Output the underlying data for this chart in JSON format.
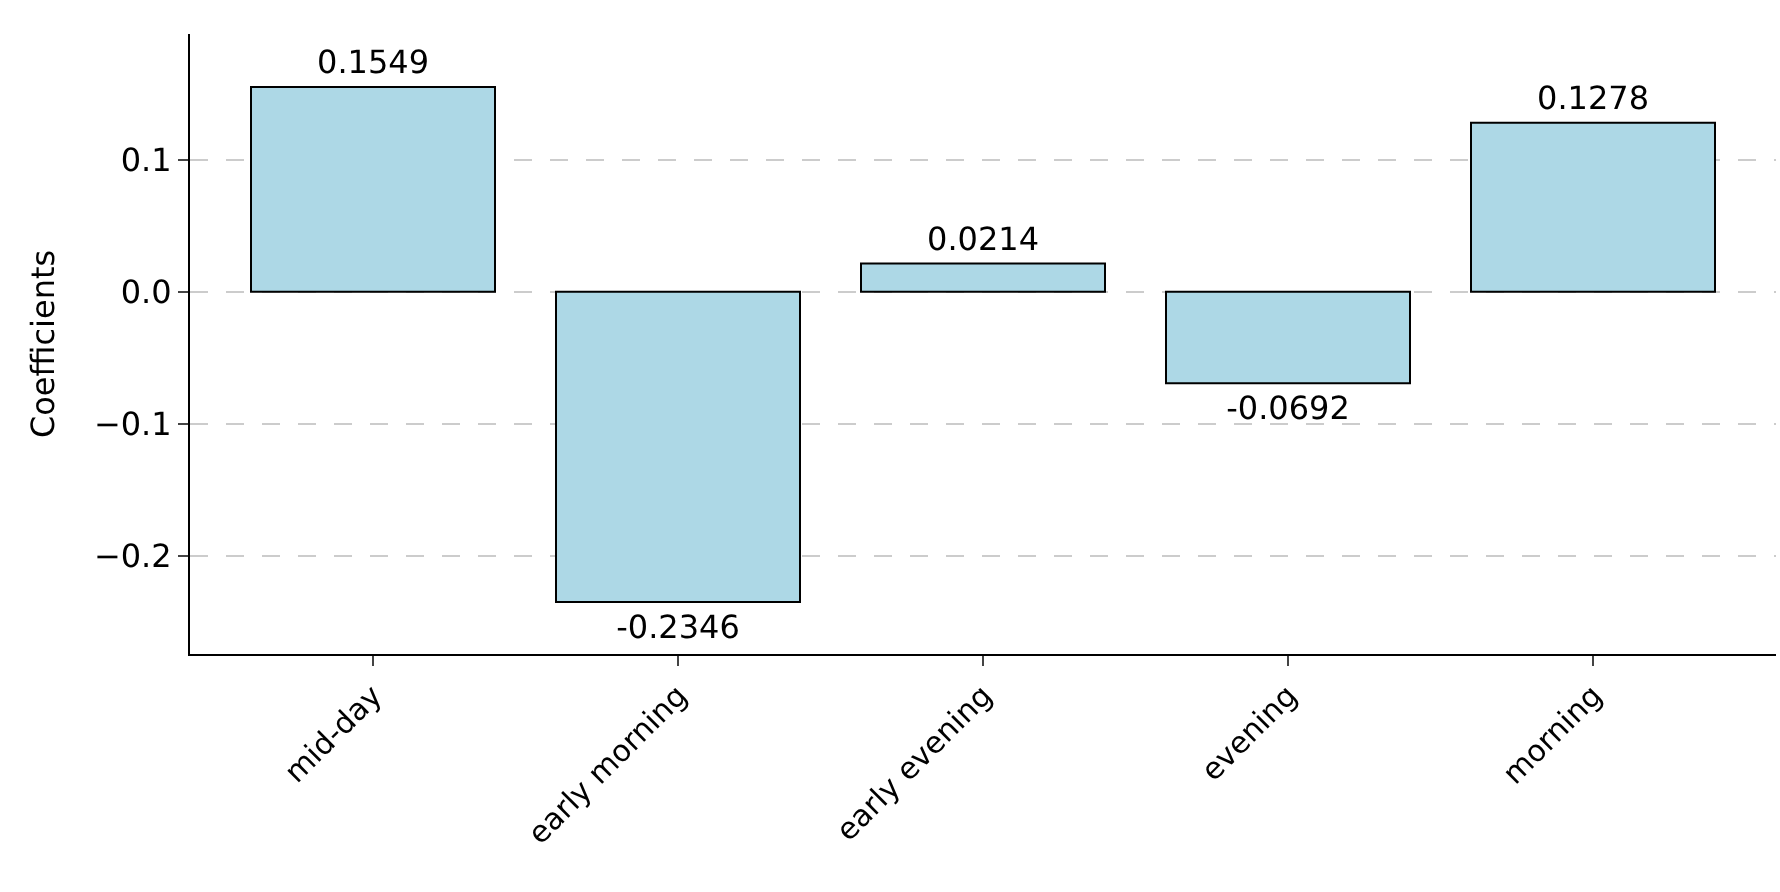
{
  "chart_data": {
    "type": "bar",
    "ylabel": "Coefficients",
    "categories": [
      "mid-day",
      "early morning",
      "early evening",
      "evening",
      "morning"
    ],
    "values": [
      0.1549,
      -0.2346,
      0.0214,
      -0.0692,
      0.1278
    ],
    "color": "#add8e6",
    "ylim": [
      -0.274,
      0.195
    ],
    "yticks": [
      {
        "value": -0.2,
        "label": "−0.2"
      },
      {
        "value": -0.1,
        "label": "−0.1"
      },
      {
        "value": 0.0,
        "label": "0.0"
      },
      {
        "value": 0.1,
        "label": "0.1"
      }
    ],
    "grid": "y",
    "data_labels": true,
    "legend": false
  }
}
